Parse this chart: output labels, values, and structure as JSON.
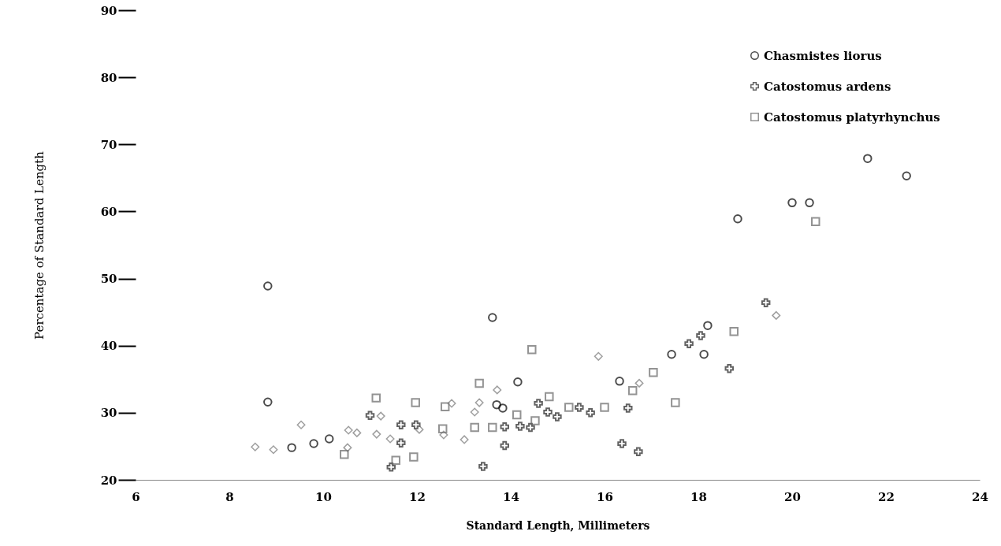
{
  "chart_data": {
    "type": "scatter",
    "xlabel": "Standard Length, Millimeters",
    "ylabel": "Percentage of Standard Length",
    "xlim": [
      6,
      24
    ],
    "ylim": [
      20,
      90
    ],
    "xticks": [
      6,
      8,
      10,
      12,
      14,
      16,
      18,
      20,
      22,
      24
    ],
    "yticks": [
      20,
      30,
      40,
      50,
      60,
      70,
      80,
      90
    ],
    "grid": false,
    "legend": "top right",
    "series": [
      {
        "name": "Chasmistes liorus",
        "color": "#000000",
        "marker": "circle",
        "x": [
          8.82,
          8.82,
          9.33,
          9.8,
          10.13,
          13.61,
          14.15,
          13.7,
          13.83,
          16.32,
          17.43,
          18.12,
          18.2,
          18.84,
          20.0,
          20.37,
          21.61,
          22.44
        ],
        "values": [
          48.9,
          31.6,
          24.8,
          25.4,
          26.1,
          44.2,
          34.6,
          31.2,
          30.7,
          34.7,
          38.7,
          38.7,
          43.0,
          58.9,
          61.3,
          61.3,
          67.9,
          65.3
        ]
      },
      {
        "name": "Catostomus ardens",
        "color": "#222222",
        "marker": "cross",
        "x": [
          11.0,
          11.66,
          11.66,
          11.98,
          11.45,
          13.41,
          13.87,
          13.87,
          14.2,
          14.42,
          14.59,
          14.79,
          14.99,
          15.46,
          15.7,
          16.37,
          16.72,
          16.5,
          17.8,
          18.05,
          18.66,
          19.44
        ],
        "values": [
          29.6,
          28.2,
          25.5,
          28.2,
          21.9,
          22.0,
          25.1,
          27.9,
          28.0,
          27.8,
          31.4,
          30.1,
          29.4,
          30.8,
          30.0,
          25.4,
          24.2,
          30.7,
          40.3,
          41.5,
          36.6,
          46.4
        ]
      },
      {
        "name": "Catostomus platyrhynchus",
        "color": "#666666",
        "marker": "square",
        "x": [
          10.45,
          11.13,
          11.55,
          11.93,
          11.97,
          12.55,
          12.6,
          13.23,
          13.33,
          13.61,
          14.13,
          14.45,
          14.52,
          14.82,
          15.24,
          16.0,
          16.6,
          17.04,
          17.51,
          18.76,
          20.5
        ],
        "values": [
          23.8,
          32.2,
          22.9,
          23.4,
          31.5,
          27.6,
          30.9,
          27.8,
          34.4,
          27.8,
          29.7,
          39.4,
          28.8,
          32.4,
          30.8,
          30.8,
          33.3,
          36.0,
          31.5,
          42.1,
          58.5
        ]
      },
      {
        "color": "#777777",
        "marker": "diamond",
        "x": [
          8.55,
          8.94,
          9.53,
          10.52,
          10.54,
          10.72,
          11.14,
          11.23,
          11.43,
          12.05,
          12.57,
          12.74,
          13.01,
          13.23,
          13.33,
          13.71,
          15.87,
          16.74,
          19.66
        ],
        "values": [
          24.9,
          24.5,
          28.2,
          24.8,
          27.4,
          27.0,
          26.8,
          29.5,
          26.1,
          27.5,
          26.7,
          31.4,
          26.0,
          30.1,
          31.5,
          33.4,
          38.4,
          34.4,
          44.5
        ]
      }
    ]
  }
}
